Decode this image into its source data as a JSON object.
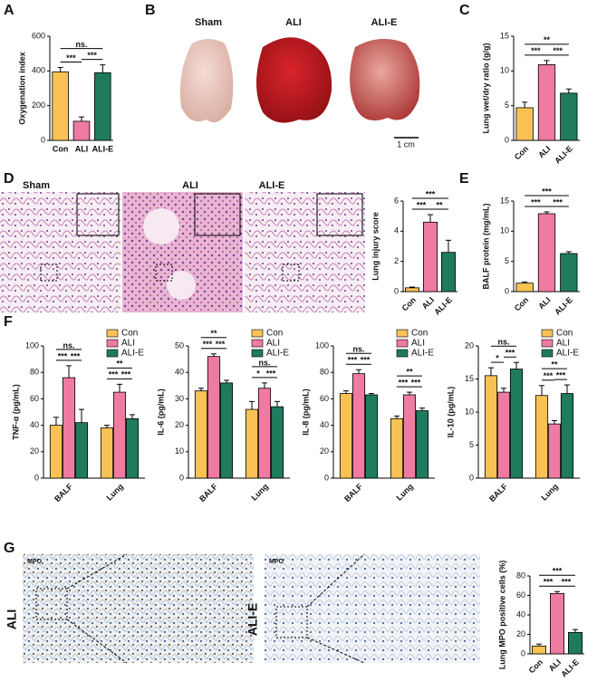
{
  "panel_labels": [
    "A",
    "B",
    "C",
    "D",
    "E",
    "F",
    "G"
  ],
  "image_labels": {
    "B": {
      "labels": [
        "Sham",
        "ALI",
        "ALI-E"
      ],
      "scale": "1 cm"
    },
    "D": {
      "labels": [
        "Sham",
        "ALI",
        "ALI-E"
      ]
    },
    "G": {
      "stain": [
        "MPO",
        "MPO"
      ],
      "rows": [
        "ALI",
        "ALI-E"
      ]
    }
  },
  "chart_data": [
    {
      "type": "bar",
      "ylabel": "Oxygenation index",
      "categories": [
        "Con",
        "ALI",
        "ALI-E"
      ],
      "values": [
        395,
        110,
        390
      ],
      "errors": [
        25,
        25,
        45
      ],
      "colors": [
        "#f9c255",
        "#f07ba0",
        "#1f7a5e"
      ],
      "ylim": [
        0,
        600
      ],
      "yticks": [
        0,
        200,
        400,
        600
      ],
      "rotate_xlabels": false,
      "annotations": [
        {
          "text": "***",
          "pair": [
            0,
            1
          ]
        },
        {
          "text": "***",
          "pair": [
            1,
            2
          ]
        },
        {
          "text": "ns.",
          "pair": [
            0,
            2
          ]
        }
      ]
    },
    {
      "type": "bar",
      "ylabel": "Lung wet/dry ratio (g/g)",
      "categories": [
        "Con",
        "ALI",
        "ALI-E"
      ],
      "values": [
        4.7,
        10.9,
        6.8
      ],
      "errors": [
        0.8,
        0.6,
        0.6
      ],
      "colors": [
        "#f9c255",
        "#f07ba0",
        "#1f7a5e"
      ],
      "ylim": [
        0,
        15
      ],
      "yticks": [
        0,
        5,
        10,
        15
      ],
      "rotate_xlabels": true,
      "annotations": [
        {
          "text": "***",
          "pair": [
            0,
            1
          ]
        },
        {
          "text": "***",
          "pair": [
            1,
            2
          ]
        },
        {
          "text": "**",
          "pair": [
            0,
            2
          ]
        }
      ]
    },
    {
      "type": "bar",
      "ylabel": "Lung injury score",
      "categories": [
        "Con",
        "ALI",
        "ALI-E"
      ],
      "values": [
        0.25,
        4.6,
        2.6
      ],
      "errors": [
        0.05,
        0.5,
        0.8
      ],
      "colors": [
        "#f9c255",
        "#f07ba0",
        "#1f7a5e"
      ],
      "ylim": [
        0,
        6
      ],
      "yticks": [
        0,
        2,
        4,
        6
      ],
      "rotate_xlabels": true,
      "annotations": [
        {
          "text": "***",
          "pair": [
            0,
            1
          ]
        },
        {
          "text": "**",
          "pair": [
            1,
            2
          ]
        },
        {
          "text": "***",
          "pair": [
            0,
            2
          ]
        }
      ]
    },
    {
      "type": "bar",
      "ylabel": "BALF protein (mg/mL)",
      "categories": [
        "Con",
        "ALI",
        "ALI-E"
      ],
      "values": [
        1.4,
        12.9,
        6.3
      ],
      "errors": [
        0.2,
        0.3,
        0.3
      ],
      "colors": [
        "#f9c255",
        "#f07ba0",
        "#1f7a5e"
      ],
      "ylim": [
        0,
        15
      ],
      "yticks": [
        0,
        5,
        10,
        15
      ],
      "rotate_xlabels": true,
      "annotations": [
        {
          "text": "***",
          "pair": [
            0,
            1
          ]
        },
        {
          "text": "***",
          "pair": [
            1,
            2
          ]
        },
        {
          "text": "***",
          "pair": [
            0,
            2
          ]
        }
      ]
    },
    {
      "type": "grouped_bar",
      "ylabel": "TNF-α (pg/mL)",
      "categories": [
        "BALF",
        "Lung"
      ],
      "series": [
        {
          "name": "Con",
          "color": "#f9c255",
          "values": [
            40,
            38
          ],
          "errors": [
            6,
            2
          ]
        },
        {
          "name": "ALI",
          "color": "#f07ba0",
          "values": [
            76,
            65
          ],
          "errors": [
            9,
            6
          ]
        },
        {
          "name": "ALI-E",
          "color": "#1f7a5e",
          "values": [
            42,
            45
          ],
          "errors": [
            10,
            3
          ]
        }
      ],
      "ylim": [
        0,
        100
      ],
      "yticks": [
        0,
        20,
        40,
        60,
        80,
        100
      ],
      "rotate_xlabels": true,
      "legend": "top-right",
      "annotations": [
        {
          "text": "***",
          "group": 0,
          "pair": [
            0,
            1
          ]
        },
        {
          "text": "***",
          "group": 0,
          "pair": [
            1,
            2
          ]
        },
        {
          "text": "ns.",
          "group": 0,
          "pair": [
            0,
            2
          ]
        },
        {
          "text": "***",
          "group": 1,
          "pair": [
            0,
            1
          ]
        },
        {
          "text": "***",
          "group": 1,
          "pair": [
            1,
            2
          ]
        },
        {
          "text": "**",
          "group": 1,
          "pair": [
            0,
            2
          ]
        }
      ]
    },
    {
      "type": "grouped_bar",
      "ylabel": "IL-6 (pg/mL)",
      "categories": [
        "BALF",
        "Lung"
      ],
      "series": [
        {
          "name": "Con",
          "color": "#f9c255",
          "values": [
            33,
            26
          ],
          "errors": [
            1,
            3
          ]
        },
        {
          "name": "ALI",
          "color": "#f07ba0",
          "values": [
            46,
            34
          ],
          "errors": [
            1,
            2
          ]
        },
        {
          "name": "ALI-E",
          "color": "#1f7a5e",
          "values": [
            36,
            27
          ],
          "errors": [
            1,
            2
          ]
        }
      ],
      "ylim": [
        0,
        50
      ],
      "yticks": [
        0,
        10,
        20,
        30,
        40,
        50
      ],
      "rotate_xlabels": true,
      "legend": "top-right",
      "annotations": [
        {
          "text": "***",
          "group": 0,
          "pair": [
            0,
            1
          ]
        },
        {
          "text": "***",
          "group": 0,
          "pair": [
            1,
            2
          ]
        },
        {
          "text": "**",
          "group": 0,
          "pair": [
            0,
            2
          ]
        },
        {
          "text": "*",
          "group": 1,
          "pair": [
            0,
            1
          ]
        },
        {
          "text": "***",
          "group": 1,
          "pair": [
            1,
            2
          ]
        },
        {
          "text": "ns.",
          "group": 1,
          "pair": [
            0,
            2
          ]
        }
      ]
    },
    {
      "type": "grouped_bar",
      "ylabel": "IL-8 (pg/mL)",
      "categories": [
        "BALF",
        "Lung"
      ],
      "series": [
        {
          "name": "Con",
          "color": "#f9c255",
          "values": [
            64,
            45
          ],
          "errors": [
            2,
            2
          ]
        },
        {
          "name": "ALI",
          "color": "#f07ba0",
          "values": [
            79,
            63
          ],
          "errors": [
            3,
            2
          ]
        },
        {
          "name": "ALI-E",
          "color": "#1f7a5e",
          "values": [
            63,
            51
          ],
          "errors": [
            1,
            2
          ]
        }
      ],
      "ylim": [
        0,
        100
      ],
      "yticks": [
        0,
        20,
        40,
        60,
        80,
        100
      ],
      "rotate_xlabels": true,
      "legend": "top-right",
      "annotations": [
        {
          "text": "***",
          "group": 0,
          "pair": [
            0,
            1
          ]
        },
        {
          "text": "***",
          "group": 0,
          "pair": [
            1,
            2
          ]
        },
        {
          "text": "ns.",
          "group": 0,
          "pair": [
            0,
            2
          ]
        },
        {
          "text": "***",
          "group": 1,
          "pair": [
            0,
            1
          ]
        },
        {
          "text": "***",
          "group": 1,
          "pair": [
            1,
            2
          ]
        },
        {
          "text": "**",
          "group": 1,
          "pair": [
            0,
            2
          ]
        }
      ]
    },
    {
      "type": "grouped_bar",
      "ylabel": "IL-10 (pg/mL)",
      "categories": [
        "BALF",
        "Lung"
      ],
      "series": [
        {
          "name": "Con",
          "color": "#f9c255",
          "values": [
            15.5,
            12.5
          ],
          "errors": [
            1.2,
            1.5
          ]
        },
        {
          "name": "ALI",
          "color": "#f07ba0",
          "values": [
            13,
            8.2
          ],
          "errors": [
            0.6,
            0.5
          ]
        },
        {
          "name": "ALI-E",
          "color": "#1f7a5e",
          "values": [
            16.5,
            12.8
          ],
          "errors": [
            1,
            1.3
          ]
        }
      ],
      "ylim": [
        0,
        20
      ],
      "yticks": [
        0,
        5,
        10,
        15,
        20
      ],
      "rotate_xlabels": true,
      "legend": "top-right",
      "annotations": [
        {
          "text": "*",
          "group": 0,
          "pair": [
            0,
            1
          ]
        },
        {
          "text": "***",
          "group": 0,
          "pair": [
            1,
            2
          ]
        },
        {
          "text": "ns.",
          "group": 0,
          "pair": [
            0,
            2
          ]
        },
        {
          "text": "***",
          "group": 1,
          "pair": [
            0,
            1
          ]
        },
        {
          "text": "***",
          "group": 1,
          "pair": [
            1,
            2
          ]
        },
        {
          "text": "**",
          "group": 1,
          "pair": [
            0,
            2
          ]
        }
      ]
    },
    {
      "type": "bar",
      "ylabel": "Lung MPO positive cells (%)",
      "categories": [
        "Con",
        "ALI",
        "ALI-E"
      ],
      "values": [
        8,
        62,
        22
      ],
      "errors": [
        2,
        2,
        3
      ],
      "colors": [
        "#f9c255",
        "#f07ba0",
        "#1f7a5e"
      ],
      "ylim": [
        0,
        80
      ],
      "yticks": [
        0,
        20,
        40,
        60,
        80
      ],
      "rotate_xlabels": true,
      "annotations": [
        {
          "text": "***",
          "pair": [
            0,
            1
          ]
        },
        {
          "text": "***",
          "pair": [
            1,
            2
          ]
        },
        {
          "text": "***",
          "pair": [
            0,
            2
          ]
        }
      ]
    }
  ]
}
